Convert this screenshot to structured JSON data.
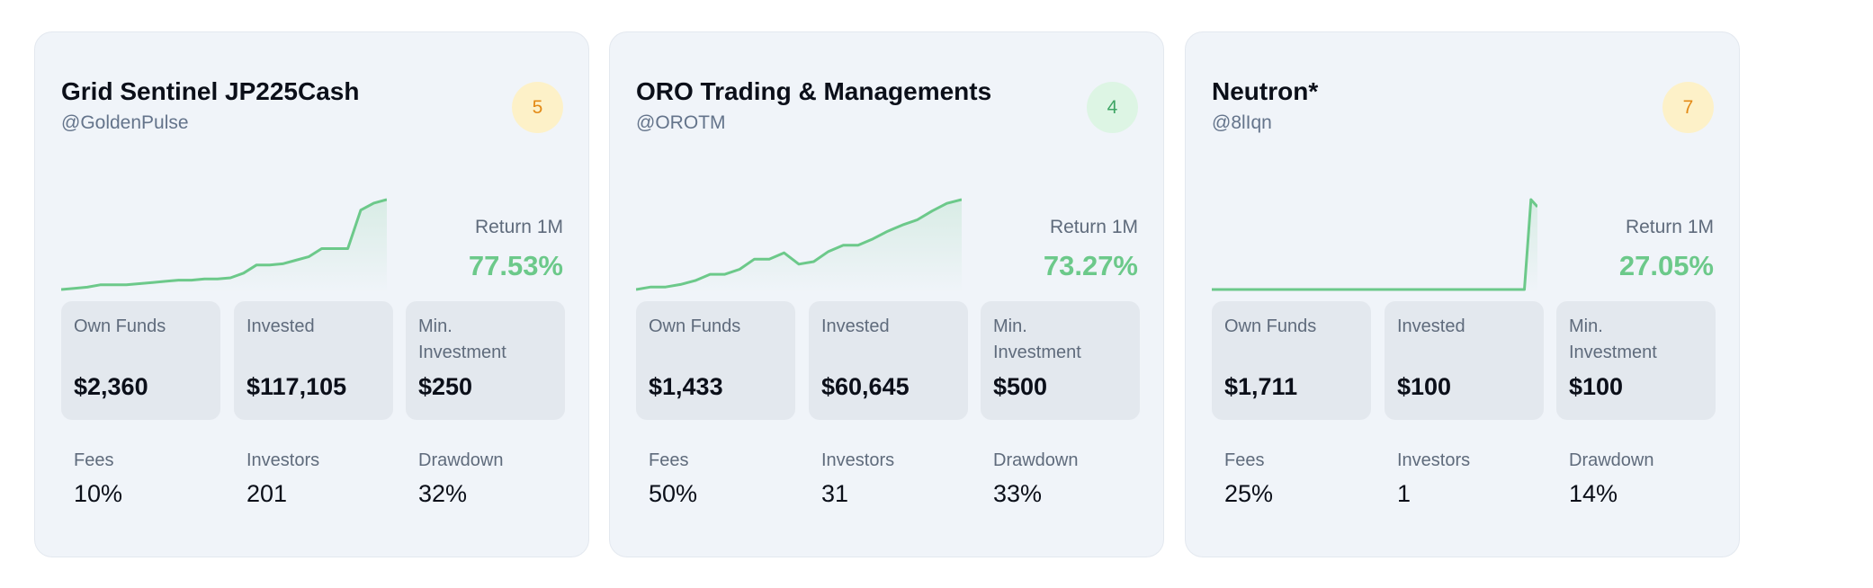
{
  "cards": [
    {
      "title": "Grid Sentinel JP225Cash",
      "handle": "@GoldenPulse",
      "risk_score": "5",
      "risk_color": "orange",
      "return_label": "Return 1M",
      "return_value": "77.53%",
      "sparkline": [
        2,
        3,
        4,
        6,
        6,
        6,
        7,
        8,
        9,
        10,
        10,
        11,
        11,
        12,
        16,
        23,
        23,
        24,
        27,
        30,
        37,
        37,
        37,
        70,
        76,
        79
      ],
      "stats": [
        {
          "label": "Own Funds",
          "value": "$2,360"
        },
        {
          "label": "Invested",
          "value": "$117,105"
        },
        {
          "label": "Min. Investment",
          "value": "$250"
        }
      ],
      "metrics": [
        {
          "label": "Fees",
          "value": "10%"
        },
        {
          "label": "Investors",
          "value": "201"
        },
        {
          "label": "Drawdown",
          "value": "32%"
        }
      ]
    },
    {
      "title": "ORO Trading & Managements",
      "handle": "@OROTM",
      "risk_score": "4",
      "risk_color": "green",
      "return_label": "Return 1M",
      "return_value": "73.27%",
      "sparkline": [
        2,
        4,
        4,
        6,
        9,
        14,
        14,
        18,
        26,
        26,
        31,
        22,
        24,
        32,
        37,
        37,
        42,
        48,
        53,
        57,
        64,
        70,
        73
      ],
      "stats": [
        {
          "label": "Own Funds",
          "value": "$1,433"
        },
        {
          "label": "Invested",
          "value": "$60,645"
        },
        {
          "label": "Min. Investment",
          "value": "$500"
        }
      ],
      "metrics": [
        {
          "label": "Fees",
          "value": "50%"
        },
        {
          "label": "Investors",
          "value": "31"
        },
        {
          "label": "Drawdown",
          "value": "33%"
        }
      ]
    },
    {
      "title": "Neutron*",
      "handle": "@8lIqn",
      "risk_score": "7",
      "risk_color": "orange",
      "return_label": "Return 1M",
      "return_value": "27.05%",
      "sparkline": [
        0,
        0,
        0,
        0,
        0,
        0,
        0,
        0,
        0,
        0,
        0,
        0,
        0,
        0,
        0,
        0,
        0,
        0,
        0,
        0,
        0,
        0,
        0,
        0,
        0,
        0,
        0,
        0,
        0,
        0,
        0,
        0,
        0,
        0,
        0,
        0,
        0,
        0,
        0,
        0,
        0,
        0,
        0,
        0,
        0,
        0,
        0,
        0,
        0,
        100,
        92
      ],
      "stats": [
        {
          "label": "Own Funds",
          "value": "$1,711"
        },
        {
          "label": "Invested",
          "value": "$100"
        },
        {
          "label": "Min. Investment",
          "value": "$100"
        }
      ],
      "metrics": [
        {
          "label": "Fees",
          "value": "25%"
        },
        {
          "label": "Investors",
          "value": "1"
        },
        {
          "label": "Drawdown",
          "value": "14%"
        }
      ]
    }
  ]
}
